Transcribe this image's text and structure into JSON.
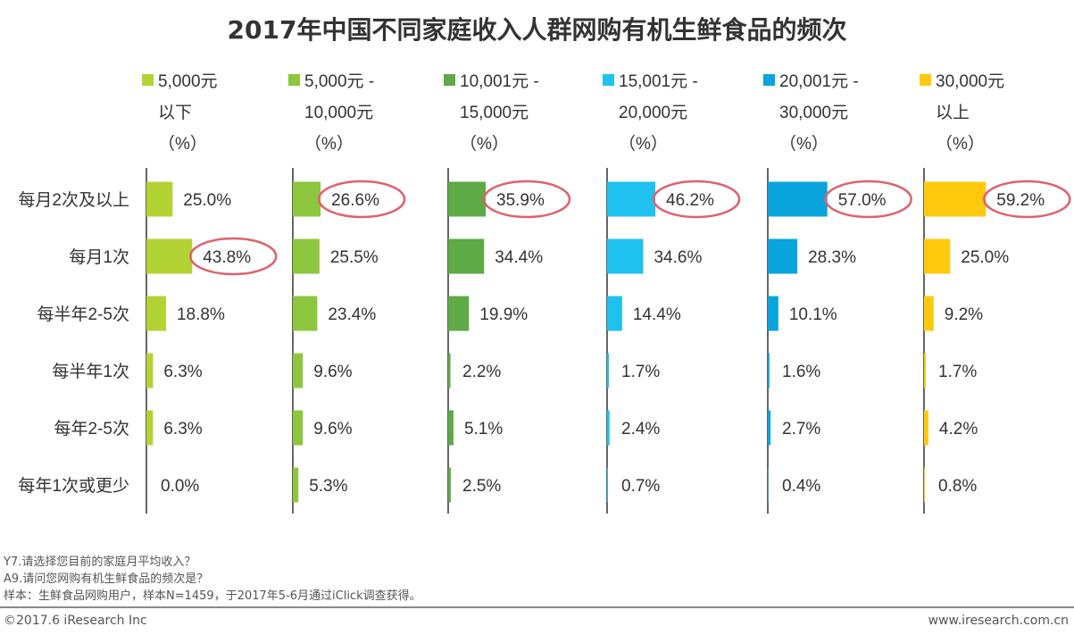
{
  "title": "2017年中国不同家庭收入人群网购有机生鲜食品的频次",
  "chart_data": {
    "type": "bar",
    "orientation": "horizontal",
    "title": "2017年中国不同家庭收入人群网购有机生鲜食品的频次",
    "categories": [
      "每月2次及以上",
      "每月1次",
      "每半年2-5次",
      "每半年1次",
      "每年2-5次",
      "每年1次或更少"
    ],
    "series": [
      {
        "name": [
          "5,000元",
          "以下",
          "（%）"
        ],
        "color": "#B3D334",
        "values": [
          25.0,
          43.8,
          18.8,
          6.3,
          6.3,
          0.0
        ],
        "highlight": 1
      },
      {
        "name": [
          "5,000元 -",
          "10,000元",
          "（%）"
        ],
        "color": "#8DC63F",
        "values": [
          26.6,
          25.5,
          23.4,
          9.6,
          9.6,
          5.3
        ],
        "highlight": 0
      },
      {
        "name": [
          "10,001元 -",
          "15,000元",
          "（%）"
        ],
        "color": "#5DAA46",
        "values": [
          35.9,
          34.4,
          19.9,
          2.2,
          5.1,
          2.5
        ],
        "highlight": 0
      },
      {
        "name": [
          "15,001元 -",
          "20,000元",
          "（%）"
        ],
        "color": "#1FC2EE",
        "values": [
          46.2,
          34.6,
          14.4,
          1.7,
          2.4,
          0.7
        ],
        "highlight": 0
      },
      {
        "name": [
          "20,001元 -",
          "30,000元",
          "（%）"
        ],
        "color": "#0AA5DC",
        "values": [
          57.0,
          28.3,
          10.1,
          1.6,
          2.7,
          0.4
        ],
        "highlight": 0
      },
      {
        "name": [
          "30,000元",
          "以上",
          "（%）"
        ],
        "color": "#FFC90E",
        "values": [
          59.2,
          25.0,
          9.2,
          1.7,
          4.2,
          0.8
        ],
        "highlight": 0
      }
    ],
    "value_format": "percent_1dp",
    "highlight_color": "#E0616E"
  },
  "footnotes": [
    "Y7.请选择您目前的家庭月平均收入？",
    "A9.请问您网购有机生鲜食品的频次是？",
    "样本：生鲜食品网购用户，样本N=1459，于2017年5-6月通过iClick调查获得。"
  ],
  "copyright": "©2017.6 iResearch Inc",
  "website": "www.iresearch.com.cn"
}
